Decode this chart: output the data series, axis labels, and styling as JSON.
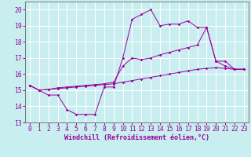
{
  "background_color": "#c8eef0",
  "grid_color": "#ffffff",
  "line_color": "#990099",
  "xlabel": "Windchill (Refroidissement éolien,°C)",
  "xlabel_fontsize": 6.0,
  "tick_fontsize": 5.8,
  "xlim": [
    -0.5,
    23.5
  ],
  "ylim": [
    13.0,
    20.5
  ],
  "yticks": [
    13,
    14,
    15,
    16,
    17,
    18,
    19,
    20
  ],
  "xticks": [
    0,
    1,
    2,
    3,
    4,
    5,
    6,
    7,
    8,
    9,
    10,
    11,
    12,
    13,
    14,
    15,
    16,
    17,
    18,
    19,
    20,
    21,
    22,
    23
  ],
  "line1_x": [
    0,
    1,
    2,
    3,
    4,
    5,
    6,
    7,
    8,
    9,
    10,
    11,
    12,
    13,
    14,
    15,
    16,
    17,
    18,
    19,
    20,
    21,
    22,
    23
  ],
  "line1_y": [
    15.3,
    15.0,
    14.7,
    14.7,
    13.8,
    13.5,
    13.5,
    13.5,
    15.2,
    15.2,
    17.0,
    19.4,
    19.7,
    20.0,
    19.0,
    19.1,
    19.1,
    19.3,
    18.9,
    18.9,
    16.8,
    16.8,
    16.3,
    16.3
  ],
  "line2_x": [
    0,
    1,
    2,
    3,
    4,
    5,
    6,
    7,
    8,
    9,
    10,
    11,
    12,
    13,
    14,
    15,
    16,
    17,
    18,
    19,
    20,
    21,
    22,
    23
  ],
  "line2_y": [
    15.3,
    15.0,
    15.05,
    15.1,
    15.15,
    15.2,
    15.25,
    15.3,
    15.35,
    15.4,
    15.5,
    15.6,
    15.7,
    15.8,
    15.9,
    16.0,
    16.1,
    16.2,
    16.3,
    16.35,
    16.4,
    16.35,
    16.3,
    16.3
  ],
  "line3_x": [
    0,
    1,
    2,
    3,
    4,
    5,
    6,
    7,
    8,
    9,
    10,
    11,
    12,
    13,
    14,
    15,
    16,
    17,
    18,
    19,
    20,
    21,
    22,
    23
  ],
  "line3_y": [
    15.3,
    15.0,
    15.05,
    15.15,
    15.2,
    15.25,
    15.3,
    15.35,
    15.4,
    15.5,
    16.5,
    17.0,
    16.9,
    17.0,
    17.2,
    17.35,
    17.5,
    17.65,
    17.8,
    18.9,
    16.8,
    16.5,
    16.3,
    16.3
  ]
}
